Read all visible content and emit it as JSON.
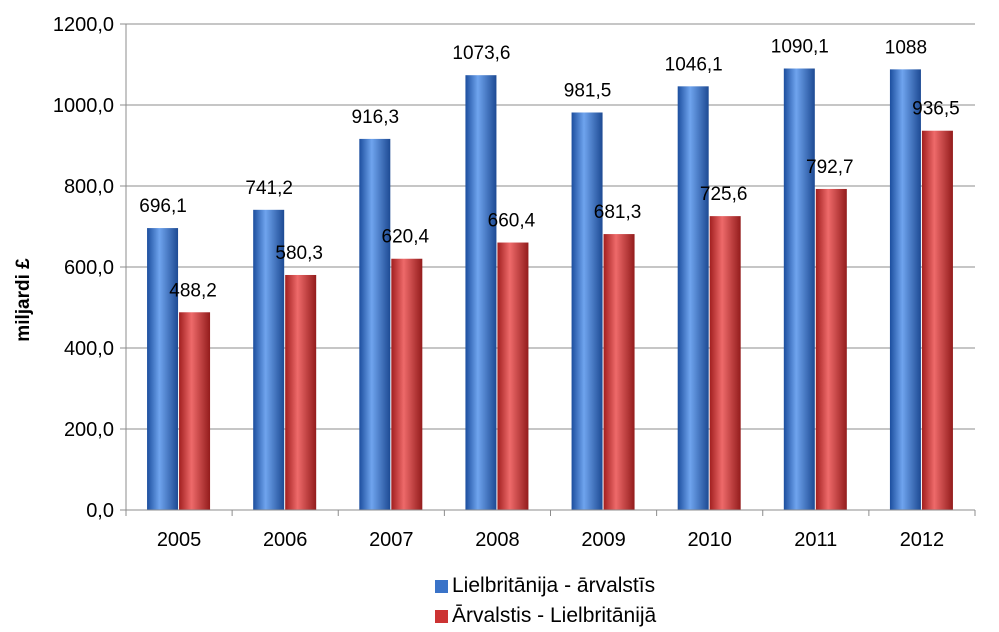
{
  "chart_data": {
    "type": "bar",
    "title": "",
    "xlabel": "",
    "ylabel": "miljardi £",
    "categories": [
      "2005",
      "2006",
      "2007",
      "2008",
      "2009",
      "2010",
      "2011",
      "2012"
    ],
    "series": [
      {
        "name": "Lielbritānija - ārvalstīs",
        "color": "#3a73c8",
        "values": [
          696.1,
          741.2,
          916.3,
          1073.6,
          981.5,
          1046.1,
          1090.1,
          1088
        ],
        "labels": [
          "696,1",
          "741,2",
          "916,3",
          "1073,6",
          "981,5",
          "1046,1",
          "1090,1",
          "1088"
        ]
      },
      {
        "name": "Ārvalstis - Lielbritānijā",
        "color": "#cc3333",
        "values": [
          488.2,
          580.3,
          620.4,
          660.4,
          681.3,
          725.6,
          792.7,
          936.5
        ],
        "labels": [
          "488,2",
          "580,3",
          "620,4",
          "660,4",
          "681,3",
          "725,6",
          "792,7",
          "936,5"
        ]
      }
    ],
    "ylim": [
      0,
      1200
    ],
    "yticks": [
      0,
      200,
      400,
      600,
      800,
      1000,
      1200
    ],
    "ytick_labels": [
      "0,0",
      "200,0",
      "400,0",
      "600,0",
      "800,0",
      "1000,0",
      "1200,0"
    ],
    "grid": true,
    "legend_position": "bottom"
  }
}
